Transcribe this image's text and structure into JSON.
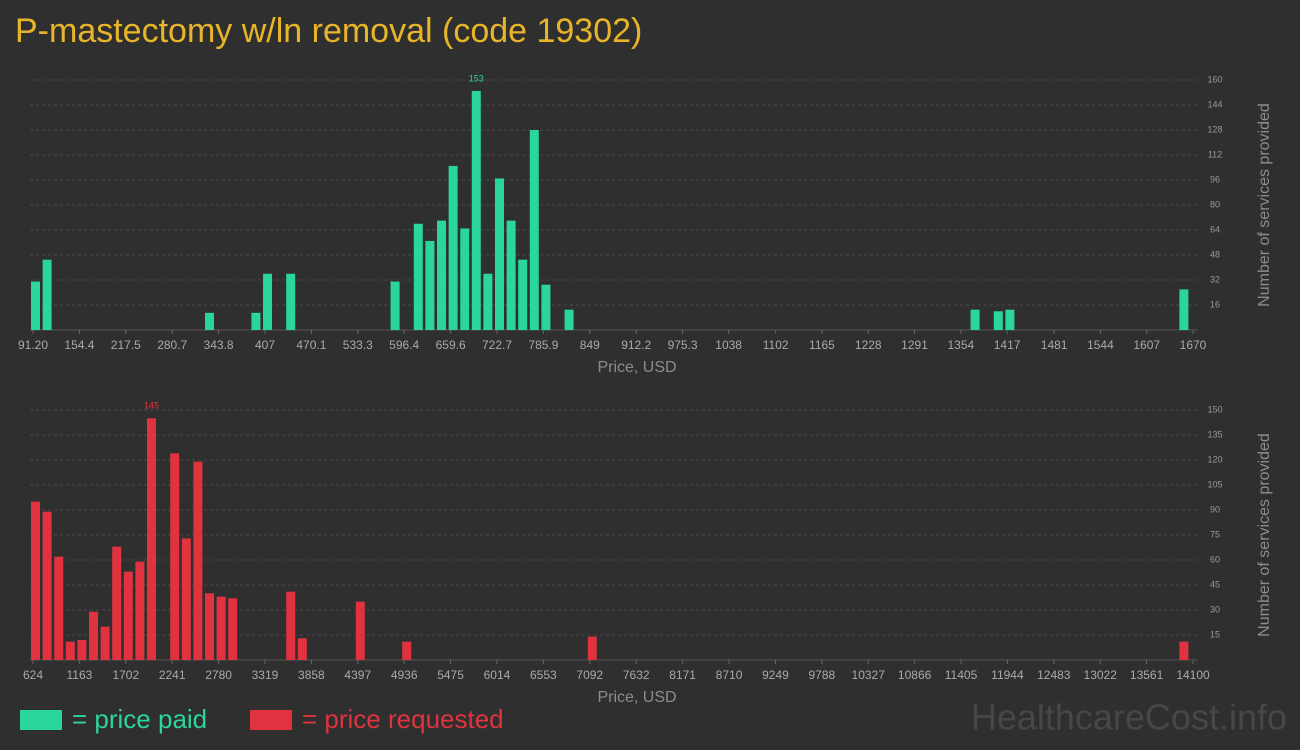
{
  "title": "P-mastectomy w/ln removal (code 19302)",
  "watermark": "HealthcareCost.info",
  "chart_data": [
    {
      "type": "bar",
      "x_label": "Price, USD",
      "y_label": "Number of services provided",
      "grid": true,
      "x": [
        91.2,
        107.0,
        328.0,
        391.2,
        407.0,
        438.5,
        580.6,
        612.2,
        628.0,
        643.8,
        659.6,
        675.4,
        691.1,
        706.9,
        722.7,
        738.5,
        754.3,
        770.1,
        785.9,
        817.4,
        1370.0,
        1401.6,
        1417.4,
        1654.2
      ],
      "series": [
        {
          "name": "= price paid",
          "color": "#2ad69c",
          "values": [
            31,
            45,
            11,
            11,
            36,
            36,
            31,
            68,
            57,
            70,
            105,
            65,
            153,
            36,
            97,
            70,
            45,
            128,
            29,
            13,
            13,
            12,
            13,
            26
          ]
        }
      ],
      "xlim": [
        91.2,
        1670
      ],
      "xticks": [
        {
          "value": 91.2,
          "label": "91.20"
        },
        154.4,
        217.5,
        280.7,
        343.8,
        407,
        470.1,
        533.3,
        596.4,
        659.6,
        722.7,
        785.9,
        849,
        912.2,
        975.3,
        1038,
        1102,
        1165,
        1228,
        1291,
        1354,
        1417,
        1481,
        1544,
        1607,
        1670
      ],
      "ylim": [
        0,
        160
      ],
      "yticks": [
        16,
        32,
        48,
        64,
        80,
        96,
        112,
        128,
        144,
        160
      ]
    },
    {
      "type": "bar",
      "x_label": "Price, USD",
      "y_label": "Number of services provided",
      "grid": true,
      "x": [
        624,
        758.8,
        893.5,
        1028.3,
        1163,
        1297.8,
        1432.6,
        1567.3,
        1702.1,
        1836.8,
        1971.6,
        2241.1,
        2375.9,
        2510.6,
        2645.4,
        2780.2,
        2914.9,
        3588.7,
        3723.5,
        4397.3,
        4936.3,
        7092.5,
        13965.2
      ],
      "series": [
        {
          "name": "= price requested",
          "color": "#e0333f",
          "values": [
            95,
            89,
            62,
            11,
            12,
            29,
            20,
            68,
            53,
            59,
            145,
            124,
            73,
            119,
            40,
            38,
            37,
            41,
            13,
            35,
            11,
            14,
            11
          ]
        }
      ],
      "xlim": [
        624,
        14100
      ],
      "xticks": [
        624,
        1163,
        1702,
        2241,
        2780,
        3319,
        3858,
        4397,
        4936,
        5475,
        6014,
        6553,
        7092,
        7632,
        8171,
        8710,
        9249,
        9788,
        10327,
        10866,
        11405,
        11944,
        12483,
        13022,
        13561,
        14100
      ],
      "ylim": [
        0,
        150
      ],
      "yticks": [
        15,
        30,
        45,
        60,
        75,
        90,
        105,
        120,
        135,
        150
      ]
    }
  ]
}
